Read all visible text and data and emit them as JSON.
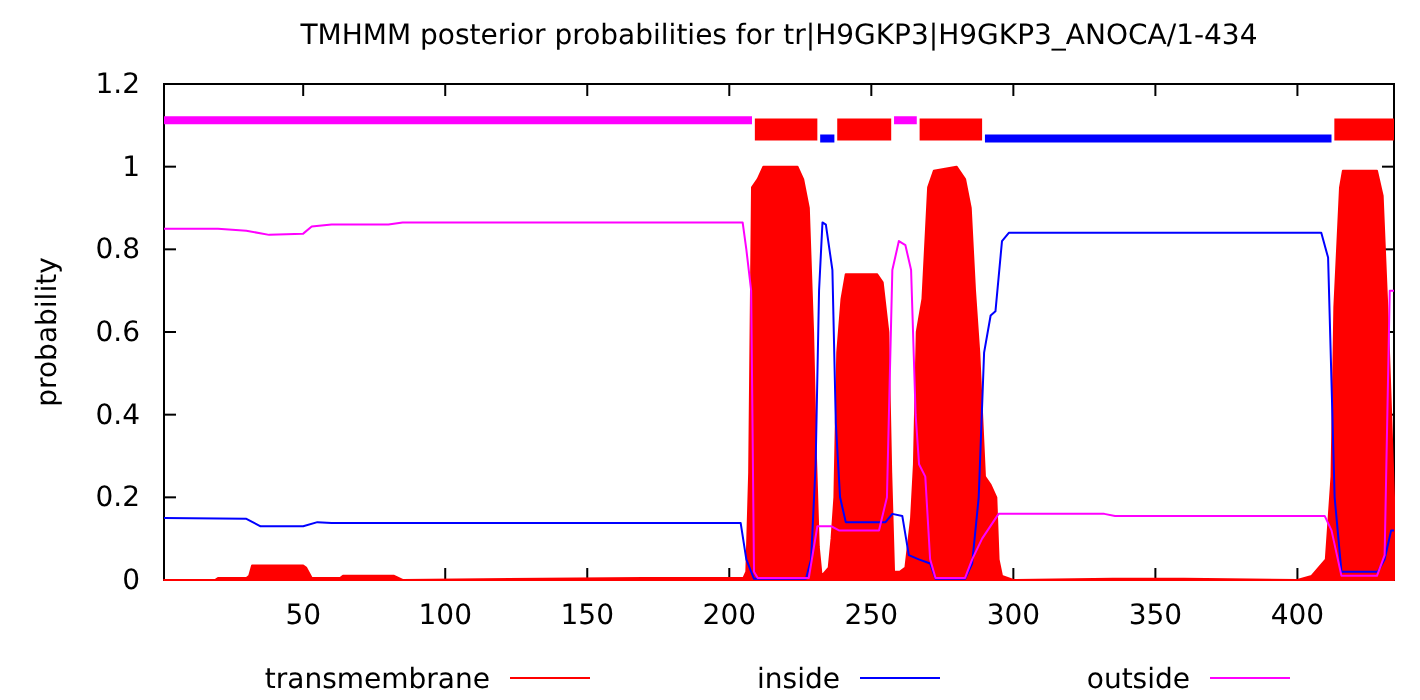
{
  "chart_data": {
    "type": "line",
    "title": "TMHMM posterior probabilities for tr|H9GKP3|H9GKP3_ANOCA/1-434",
    "ylabel": "probability",
    "xlim": [
      1,
      434
    ],
    "ylim": [
      0,
      1.2
    ],
    "xticks": [
      50,
      100,
      150,
      200,
      250,
      300,
      350,
      400
    ],
    "yticks": [
      0,
      0.2,
      0.4,
      0.6,
      0.8,
      1,
      1.2
    ],
    "legend": "bottom",
    "grid": false,
    "series": [
      {
        "name": "transmembrane",
        "type": "area",
        "color": "#ff0000",
        "x": [
          1,
          19,
          20,
          30,
          31,
          32,
          50,
          51,
          53,
          60,
          63,
          64,
          82,
          85,
          170,
          205,
          206,
          207,
          208,
          210,
          212,
          224,
          226,
          228,
          229.5,
          230.5,
          231.5,
          232.5,
          235,
          236,
          237,
          238,
          239.5,
          241,
          252,
          254,
          256,
          257,
          258,
          260,
          262,
          264,
          265,
          266,
          268,
          270,
          272,
          280,
          283,
          285,
          286.5,
          288,
          290,
          292,
          294,
          294.8,
          296,
          300,
          335,
          360,
          400,
          405,
          410,
          412,
          413,
          415,
          416,
          428,
          430,
          432,
          434
        ],
        "values": [
          0,
          0,
          0.005,
          0.005,
          0.01,
          0.035,
          0.035,
          0.03,
          0.005,
          0.005,
          0.005,
          0.01,
          0.01,
          0,
          0.005,
          0.005,
          0.02,
          0.26,
          0.95,
          0.97,
          1,
          1,
          0.97,
          0.9,
          0.6,
          0.3,
          0.08,
          0.01,
          0.03,
          0.1,
          0.2,
          0.55,
          0.68,
          0.74,
          0.74,
          0.72,
          0.6,
          0.26,
          0.02,
          0.02,
          0.03,
          0.15,
          0.28,
          0.6,
          0.68,
          0.95,
          0.99,
          1,
          0.97,
          0.9,
          0.7,
          0.55,
          0.25,
          0.23,
          0.2,
          0.05,
          0.01,
          0,
          0.003,
          0.003,
          0,
          0.01,
          0.05,
          0.25,
          0.66,
          0.95,
          0.99,
          0.99,
          0.93,
          0.6,
          0.2
        ]
      },
      {
        "name": "inside",
        "color": "#0000ff",
        "x": [
          1,
          30,
          35,
          50,
          55,
          60,
          204,
          206,
          208.7,
          227,
          228.8,
          230.4,
          231.6,
          232.8,
          234,
          236.3,
          237.5,
          239,
          241,
          255,
          257.4,
          260.9,
          263.2,
          266.7,
          270.7,
          272.6,
          283,
          285.5,
          287.8,
          289.7,
          292,
          293.7,
          296,
          298.4,
          408.4,
          410.8,
          413.1,
          415.5,
          428.3,
          430.7,
          433,
          434
        ],
        "values": [
          0.15,
          0.148,
          0.13,
          0.13,
          0.14,
          0.138,
          0.138,
          0.05,
          0.003,
          0.003,
          0.05,
          0.28,
          0.7,
          0.865,
          0.86,
          0.75,
          0.38,
          0.2,
          0.14,
          0.14,
          0.16,
          0.155,
          0.06,
          0.05,
          0.04,
          0.003,
          0.003,
          0.04,
          0.2,
          0.55,
          0.64,
          0.65,
          0.82,
          0.84,
          0.84,
          0.78,
          0.2,
          0.02,
          0.02,
          0.05,
          0.12,
          0.12
        ]
      },
      {
        "name": "outside",
        "color": "#ff00ff",
        "x": [
          1,
          20,
          30,
          38,
          50,
          53,
          60,
          80,
          85,
          204.7,
          206,
          207.7,
          208.7,
          210,
          228,
          231,
          236,
          238.6,
          252.7,
          255.5,
          257.4,
          259.7,
          262,
          264,
          265.6,
          266.8,
          269,
          270.7,
          272.6,
          283,
          285.5,
          289,
          294.8,
          332,
          335.8,
          409.6,
          412,
          415.5,
          428,
          430.7,
          432.5,
          434
        ],
        "values": [
          0.85,
          0.85,
          0.845,
          0.835,
          0.838,
          0.855,
          0.86,
          0.86,
          0.865,
          0.865,
          0.8,
          0.7,
          0.02,
          0.005,
          0.005,
          0.13,
          0.13,
          0.12,
          0.12,
          0.2,
          0.75,
          0.82,
          0.81,
          0.75,
          0.4,
          0.28,
          0.25,
          0.05,
          0.005,
          0.005,
          0.05,
          0.1,
          0.16,
          0.16,
          0.155,
          0.155,
          0.12,
          0.01,
          0.01,
          0.06,
          0.7,
          0.7
        ]
      },
      {
        "color": "#ff00ff",
        "x": [
          1,
          208,
          233,
          258,
          266
        ],
        "values": [
          1.112,
          1.112,
          null,
          1.112,
          1.112
        ]
      },
      {
        "color": "#0000ff",
        "x": [
          232,
          237,
          260,
          290,
          412
        ],
        "values": [
          1.068,
          1.068,
          null,
          1.068,
          1.068
        ]
      },
      {
        "color": "#ff0000",
        "x": [
          209,
          231,
          234,
          238,
          257,
          262,
          267,
          289,
          350,
          413,
          434
        ],
        "values": [
          1.09,
          1.09,
          null,
          1.09,
          1.09,
          null,
          1.09,
          1.09,
          null,
          1.09,
          1.09
        ]
      }
    ]
  }
}
